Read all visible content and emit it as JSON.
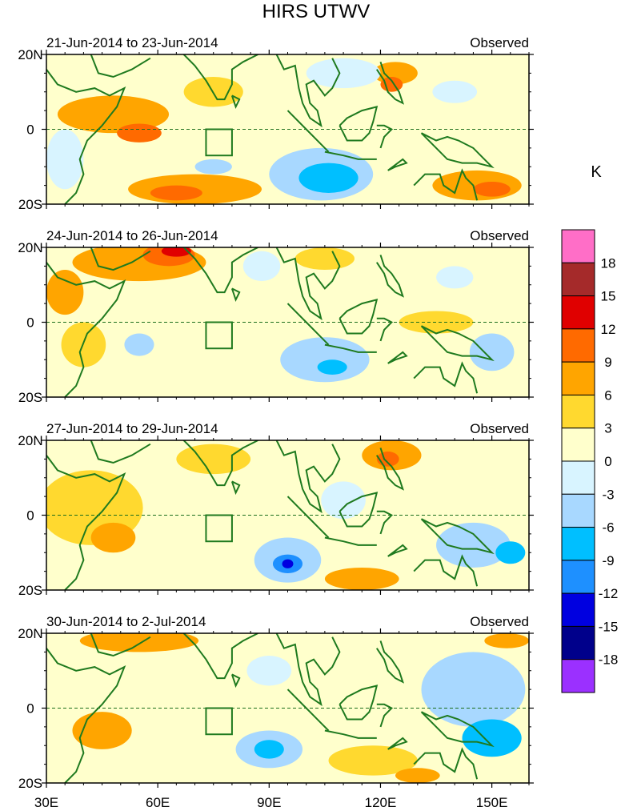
{
  "chart_data": {
    "type": "heatmap",
    "title": "HIRS UTWV",
    "colorbar": {
      "unit_label": "K",
      "levels": [
        18,
        15,
        12,
        9,
        6,
        3,
        0,
        -3,
        -6,
        -9,
        -12,
        -15,
        -18
      ],
      "bin_colors": [
        "#ff6ec7",
        "#a52a2a",
        "#e00000",
        "#ff6a00",
        "#ffa500",
        "#ffd92f",
        "#ffffcc",
        "#d8f4ff",
        "#a8d8ff",
        "#00bfff",
        "#1e90ff",
        "#0000e0",
        "#00008b",
        "#9b30ff"
      ]
    },
    "x_axis": {
      "range": [
        30,
        160
      ],
      "ticks": [
        30,
        60,
        90,
        120,
        150
      ],
      "tick_labels": [
        "30E",
        "60E",
        "90E",
        "120E",
        "150E"
      ]
    },
    "y_axis": {
      "range": [
        -20,
        20
      ],
      "ticks": [
        20,
        0,
        -20
      ],
      "tick_labels": [
        "20N",
        "0",
        "20S"
      ]
    },
    "equator_line": true,
    "box_region": {
      "lon": [
        73,
        80
      ],
      "lat": [
        -7,
        0
      ]
    },
    "panels": [
      {
        "date_label": "21-Jun-2014 to 23-Jun-2014",
        "type_label": "Observed",
        "blobs": [
          {
            "lon": 48,
            "lat": 4,
            "rx": 15,
            "ry": 5,
            "v": 6
          },
          {
            "lon": 55,
            "lat": -1,
            "rx": 6,
            "ry": 2.5,
            "v": 9
          },
          {
            "lon": 70,
            "lat": -16,
            "rx": 18,
            "ry": 4,
            "v": 6
          },
          {
            "lon": 65,
            "lat": -17,
            "rx": 7,
            "ry": 2,
            "v": 9
          },
          {
            "lon": 75,
            "lat": 10,
            "rx": 8,
            "ry": 4,
            "v": 4
          },
          {
            "lon": 124,
            "lat": 15,
            "rx": 6,
            "ry": 3,
            "v": 6
          },
          {
            "lon": 123,
            "lat": 12,
            "rx": 3,
            "ry": 2,
            "v": 9
          },
          {
            "lon": 146,
            "lat": -15,
            "rx": 12,
            "ry": 4,
            "v": 6
          },
          {
            "lon": 150,
            "lat": -16,
            "rx": 5,
            "ry": 2,
            "v": 9
          },
          {
            "lon": 104,
            "lat": -12,
            "rx": 14,
            "ry": 7,
            "v": -4
          },
          {
            "lon": 106,
            "lat": -13,
            "rx": 8,
            "ry": 4,
            "v": -7
          },
          {
            "lon": 110,
            "lat": 15,
            "rx": 10,
            "ry": 4,
            "v": -2
          },
          {
            "lon": 140,
            "lat": 10,
            "rx": 6,
            "ry": 3,
            "v": -3
          },
          {
            "lon": 35,
            "lat": -8,
            "rx": 5,
            "ry": 8,
            "v": -2
          },
          {
            "lon": 75,
            "lat": -10,
            "rx": 5,
            "ry": 2,
            "v": -4
          }
        ]
      },
      {
        "date_label": "24-Jun-2014 to 26-Jun-2014",
        "type_label": "Observed",
        "blobs": [
          {
            "lon": 55,
            "lat": 16,
            "rx": 18,
            "ry": 5,
            "v": 6
          },
          {
            "lon": 63,
            "lat": 18,
            "rx": 7,
            "ry": 3,
            "v": 10
          },
          {
            "lon": 65,
            "lat": 19,
            "rx": 4,
            "ry": 1.5,
            "v": 13
          },
          {
            "lon": 35,
            "lat": 8,
            "rx": 5,
            "ry": 6,
            "v": 6
          },
          {
            "lon": 40,
            "lat": -6,
            "rx": 6,
            "ry": 6,
            "v": 4
          },
          {
            "lon": 105,
            "lat": 17,
            "rx": 8,
            "ry": 3,
            "v": 5
          },
          {
            "lon": 135,
            "lat": 0,
            "rx": 10,
            "ry": 3,
            "v": 4
          },
          {
            "lon": 105,
            "lat": -10,
            "rx": 12,
            "ry": 6,
            "v": -5
          },
          {
            "lon": 107,
            "lat": -12,
            "rx": 4,
            "ry": 2,
            "v": -8
          },
          {
            "lon": 55,
            "lat": -6,
            "rx": 4,
            "ry": 3,
            "v": -5
          },
          {
            "lon": 88,
            "lat": 15,
            "rx": 5,
            "ry": 4,
            "v": -2
          },
          {
            "lon": 150,
            "lat": -8,
            "rx": 6,
            "ry": 5,
            "v": -4
          },
          {
            "lon": 140,
            "lat": 12,
            "rx": 5,
            "ry": 3,
            "v": -3
          }
        ]
      },
      {
        "date_label": "27-Jun-2014 to 29-Jun-2014",
        "type_label": "Observed",
        "blobs": [
          {
            "lon": 42,
            "lat": 2,
            "rx": 14,
            "ry": 10,
            "v": 4
          },
          {
            "lon": 48,
            "lat": -6,
            "rx": 6,
            "ry": 4,
            "v": 6
          },
          {
            "lon": 75,
            "lat": 15,
            "rx": 10,
            "ry": 4,
            "v": 4
          },
          {
            "lon": 123,
            "lat": 16,
            "rx": 8,
            "ry": 4,
            "v": 6
          },
          {
            "lon": 122,
            "lat": 15,
            "rx": 3,
            "ry": 2,
            "v": 9
          },
          {
            "lon": 115,
            "lat": -17,
            "rx": 10,
            "ry": 3,
            "v": 6
          },
          {
            "lon": 95,
            "lat": -12,
            "rx": 9,
            "ry": 6,
            "v": -6
          },
          {
            "lon": 95,
            "lat": -13,
            "rx": 4,
            "ry": 2.5,
            "v": -10
          },
          {
            "lon": 95,
            "lat": -13,
            "rx": 1.5,
            "ry": 1.2,
            "v": -14
          },
          {
            "lon": 145,
            "lat": -8,
            "rx": 10,
            "ry": 6,
            "v": -4
          },
          {
            "lon": 155,
            "lat": -10,
            "rx": 4,
            "ry": 3,
            "v": -7
          },
          {
            "lon": 110,
            "lat": 4,
            "rx": 6,
            "ry": 5,
            "v": -3
          }
        ]
      },
      {
        "date_label": "30-Jun-2014 to 2-Jul-2014",
        "type_label": "Observed",
        "blobs": [
          {
            "lon": 55,
            "lat": 18,
            "rx": 16,
            "ry": 3,
            "v": 6
          },
          {
            "lon": 45,
            "lat": -6,
            "rx": 8,
            "ry": 5,
            "v": 6
          },
          {
            "lon": 118,
            "lat": -14,
            "rx": 12,
            "ry": 4,
            "v": 5
          },
          {
            "lon": 130,
            "lat": -18,
            "rx": 6,
            "ry": 2,
            "v": 8
          },
          {
            "lon": 154,
            "lat": 18,
            "rx": 6,
            "ry": 2,
            "v": 7
          },
          {
            "lon": 90,
            "lat": -11,
            "rx": 9,
            "ry": 5,
            "v": -5
          },
          {
            "lon": 90,
            "lat": -11,
            "rx": 4,
            "ry": 2.5,
            "v": -8
          },
          {
            "lon": 145,
            "lat": 5,
            "rx": 14,
            "ry": 10,
            "v": -4
          },
          {
            "lon": 150,
            "lat": -8,
            "rx": 8,
            "ry": 5,
            "v": -7
          },
          {
            "lon": 90,
            "lat": 10,
            "rx": 6,
            "ry": 4,
            "v": -2
          }
        ]
      }
    ]
  }
}
